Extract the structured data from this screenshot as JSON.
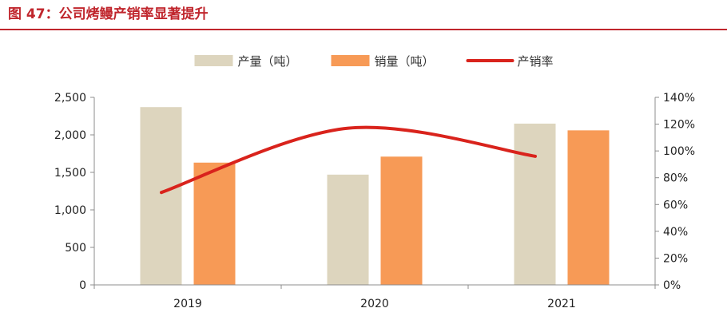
{
  "figure": {
    "title": "图 47：公司烤鳗产销率显著提升",
    "accent_color": "#C0262D"
  },
  "chart_data": {
    "type": "bar",
    "categories": [
      "2019",
      "2020",
      "2021"
    ],
    "series": [
      {
        "name": "产量（吨）",
        "kind": "bar",
        "axis": "left",
        "color": "#DDD5BE",
        "values": [
          2370,
          1470,
          2150
        ]
      },
      {
        "name": "销量（吨）",
        "kind": "bar",
        "axis": "left",
        "color": "#F79A56",
        "values": [
          1630,
          1710,
          2060
        ]
      },
      {
        "name": "产销率",
        "kind": "line",
        "axis": "right",
        "color": "#D9231C",
        "values": [
          69,
          117,
          96
        ]
      }
    ],
    "left_axis": {
      "min": 0,
      "max": 2500,
      "step": 500,
      "tick_labels": [
        "0",
        "500",
        "1,000",
        "1,500",
        "2,000",
        "2,500"
      ]
    },
    "right_axis": {
      "min": 0,
      "max": 140,
      "step": 20,
      "tick_labels": [
        "0%",
        "20%",
        "40%",
        "60%",
        "80%",
        "100%",
        "120%",
        "140%"
      ]
    },
    "legend_position": "top-center",
    "grid": false
  }
}
